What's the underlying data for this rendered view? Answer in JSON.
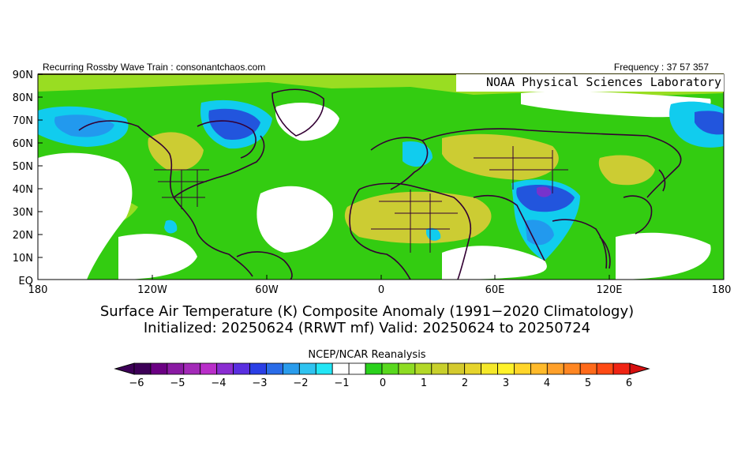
{
  "header": {
    "left": "Recurring Rossby Wave Train : consonantchaos.com",
    "right": "Frequency : 37 57 357"
  },
  "map": {
    "credit": "NOAA Physical Sciences Laboratory",
    "lat_labels": [
      "90N",
      "80N",
      "70N",
      "60N",
      "50N",
      "40N",
      "30N",
      "20N",
      "10N",
      "EQ"
    ],
    "lon_labels": [
      "180",
      "120W",
      "60W",
      "0",
      "60E",
      "120E",
      "180"
    ],
    "extent": {
      "lon": [
        -180,
        180
      ],
      "lat": [
        0,
        90
      ]
    },
    "colors": {
      "green": "#33cc11",
      "light_green": "#99dd22",
      "yellow_green": "#cccc33",
      "cyan": "#11ccee",
      "light_blue": "#2299ee",
      "blue": "#2255dd",
      "purple": "#7733cc",
      "coast": "#330033"
    }
  },
  "title": {
    "line1": "Surface Air Temperature (K) Composite Anomaly (1991−2020 Climatology)",
    "line2": "Initialized: 20250624 (RRWT mf) Valid: 20250624 to 20250724"
  },
  "colorbar": {
    "source": "NCEP/NCAR Reanalysis",
    "ticks": [
      "−6",
      "−5",
      "−4",
      "−3",
      "−2",
      "−1",
      "0",
      "1",
      "2",
      "3",
      "4",
      "5",
      "6"
    ],
    "colors": [
      "#3d0057",
      "#6b0083",
      "#8a1aa3",
      "#a32ab8",
      "#b92ec9",
      "#8a2dd1",
      "#5a2fe0",
      "#2a3fe6",
      "#2a6ce8",
      "#2a9cec",
      "#2fc3f0",
      "#22e6f5",
      "#ffffff",
      "#ffffff",
      "#2ad11c",
      "#59d81e",
      "#8edc23",
      "#b3d828",
      "#c8d02c",
      "#d4ca2e",
      "#e6d42c",
      "#f5e82a",
      "#fff22a",
      "#ffd52a",
      "#ffba2a",
      "#ffa02a",
      "#ff8622",
      "#ff6a1a",
      "#ff4a14",
      "#f02414"
    ],
    "under_color": "#3d0057",
    "over_color": "#d61010"
  }
}
